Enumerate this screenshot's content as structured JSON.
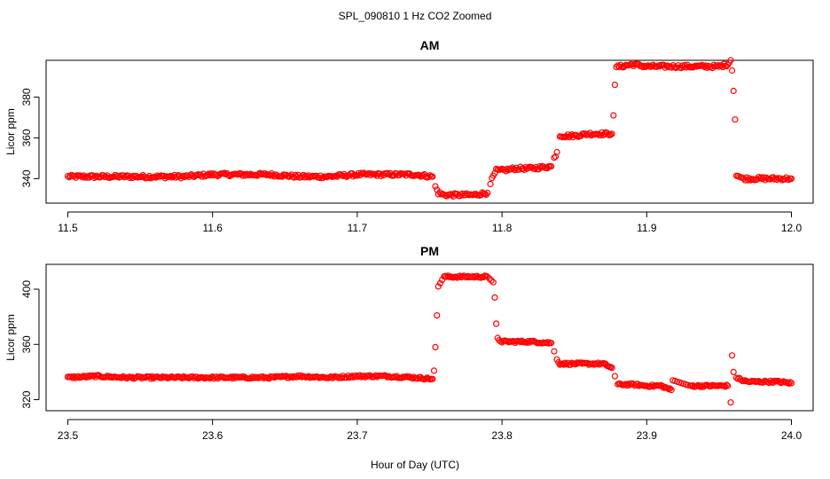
{
  "figure": {
    "title": "SPL_090810 1 Hz CO2 Zoomed",
    "xlabel": "Hour of Day (UTC)"
  },
  "colors": {
    "points": "#ff0000",
    "axes": "#000000"
  },
  "chart_data": [
    {
      "type": "scatter",
      "title": "AM",
      "xlabel": "Hour of Day (UTC)",
      "ylabel": "Licor ppm",
      "xlim": [
        11.485,
        12.015
      ],
      "ylim": [
        328,
        398
      ],
      "xticks": [
        11.5,
        11.6,
        11.7,
        11.8,
        11.9,
        12.0
      ],
      "xtick_labels": [
        "11.5",
        "11.6",
        "11.7",
        "11.8",
        "11.9",
        "12.0"
      ],
      "yticks": [
        340,
        360,
        380
      ],
      "ytick_labels": [
        "340",
        "360",
        "380"
      ],
      "grid": false,
      "series": [
        {
          "marker": "open-circle",
          "x": [
            11.5,
            11.52,
            11.54,
            11.56,
            11.58,
            11.6,
            11.62,
            11.64,
            11.66,
            11.68,
            11.7,
            11.72,
            11.74,
            11.752,
            11.754,
            11.756,
            11.76,
            11.77,
            11.78,
            11.79,
            11.792,
            11.794,
            11.796,
            11.8,
            11.81,
            11.82,
            11.834,
            11.836,
            11.838,
            11.84,
            11.85,
            11.86,
            11.87,
            11.876,
            11.877,
            11.878,
            11.879,
            11.88,
            11.882,
            11.89,
            11.9,
            11.91,
            11.92,
            11.93,
            11.94,
            11.95,
            11.956,
            11.958,
            11.959,
            11.96,
            11.961,
            11.962,
            11.966,
            11.97,
            11.98,
            11.99,
            12.0
          ],
          "y": [
            341,
            341,
            341,
            341,
            341,
            342,
            342,
            342,
            341,
            341,
            342,
            342,
            342,
            341,
            336,
            333,
            332,
            332,
            332,
            333,
            338,
            341,
            344,
            344,
            345,
            345,
            346,
            350,
            353,
            361,
            361,
            362,
            362,
            362,
            371,
            386,
            394,
            395,
            395,
            396,
            395,
            395,
            395,
            395,
            395,
            395,
            396,
            398,
            393,
            383,
            369,
            342,
            340,
            340,
            340,
            340,
            340
          ]
        }
      ]
    },
    {
      "type": "scatter",
      "title": "PM",
      "xlabel": "Hour of Day (UTC)",
      "ylabel": "Licor ppm",
      "xlim": [
        23.485,
        24.015
      ],
      "ylim": [
        312,
        418
      ],
      "xticks": [
        23.5,
        23.6,
        23.7,
        23.8,
        23.9,
        24.0
      ],
      "xtick_labels": [
        "23.5",
        "23.6",
        "23.7",
        "23.8",
        "23.9",
        "24.0"
      ],
      "yticks": [
        320,
        360,
        400
      ],
      "ytick_labels": [
        "320",
        "360",
        "400"
      ],
      "grid": false,
      "series": [
        {
          "marker": "open-circle",
          "x": [
            23.5,
            23.52,
            23.54,
            23.56,
            23.58,
            23.6,
            23.62,
            23.64,
            23.66,
            23.68,
            23.7,
            23.72,
            23.74,
            23.752,
            23.753,
            23.754,
            23.755,
            23.756,
            23.76,
            23.77,
            23.78,
            23.79,
            23.794,
            23.795,
            23.796,
            23.797,
            23.8,
            23.81,
            23.82,
            23.834,
            23.836,
            23.838,
            23.84,
            23.85,
            23.86,
            23.87,
            23.876,
            23.878,
            23.88,
            23.89,
            23.9,
            23.91,
            23.917,
            23.918,
            23.93,
            23.94,
            23.95,
            23.956,
            23.958,
            23.959,
            23.96,
            23.962,
            23.966,
            23.97,
            23.98,
            23.99,
            24.0
          ],
          "y": [
            336,
            337,
            336,
            336,
            336,
            336,
            336,
            336,
            337,
            336,
            337,
            337,
            336,
            335,
            341,
            358,
            381,
            402,
            409,
            409,
            409,
            409,
            405,
            394,
            375,
            364,
            362,
            362,
            362,
            361,
            355,
            349,
            346,
            346,
            346,
            346,
            343,
            337,
            331,
            331,
            330,
            330,
            327,
            334,
            330,
            330,
            330,
            330,
            318,
            352,
            340,
            336,
            334,
            333,
            333,
            333,
            332
          ]
        }
      ]
    }
  ]
}
